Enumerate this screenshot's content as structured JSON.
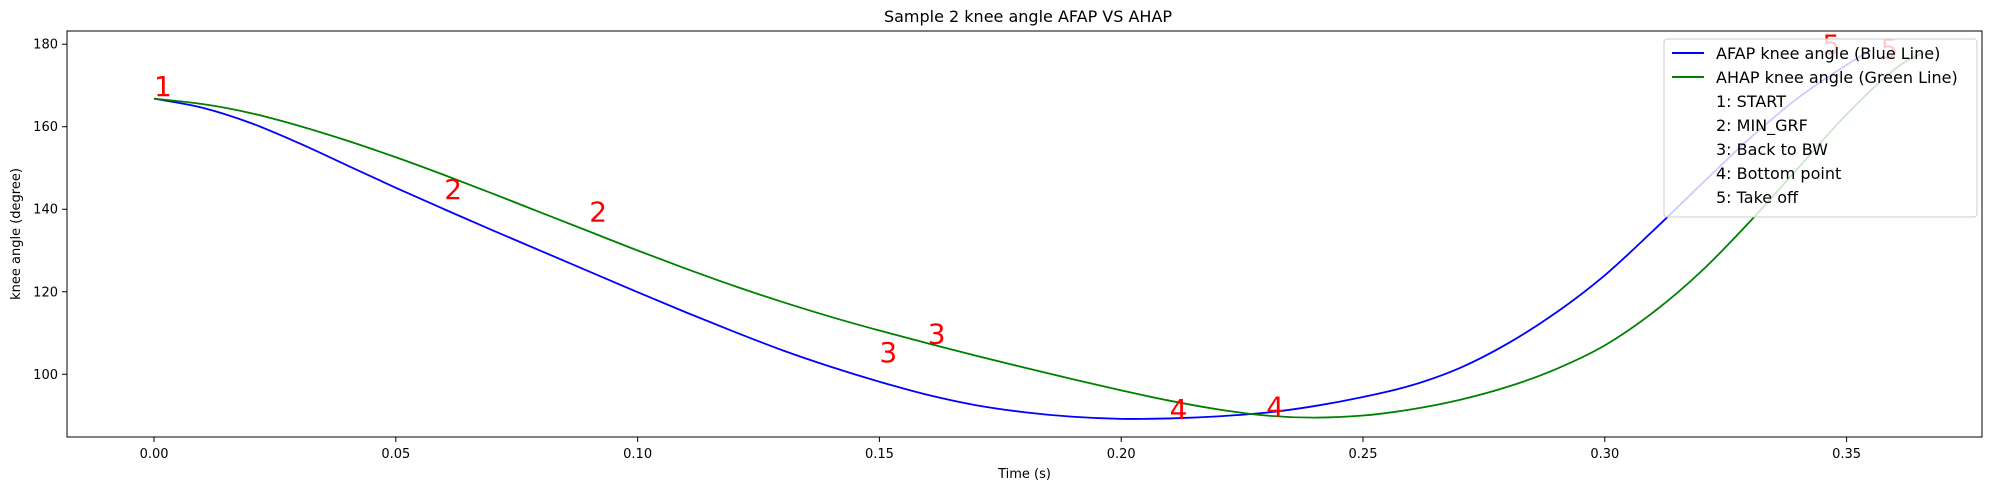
{
  "chart_data": {
    "type": "line",
    "title": "Sample 2 knee angle AFAP VS AHAP",
    "xlabel": "Time (s)",
    "ylabel": "knee angle (degree)",
    "xlim": [
      -0.018,
      0.378
    ],
    "ylim": [
      84.8,
      183.2
    ],
    "xticks": [
      0.0,
      0.05,
      0.1,
      0.15,
      0.2,
      0.25,
      0.3,
      0.35
    ],
    "xtick_labels": [
      "0.00",
      "0.05",
      "0.10",
      "0.15",
      "0.20",
      "0.25",
      "0.30",
      "0.35"
    ],
    "yticks": [
      100,
      120,
      140,
      160,
      180
    ],
    "ytick_labels": [
      "100",
      "120",
      "140",
      "160",
      "180"
    ],
    "grid": false,
    "legend_position": "top-right",
    "series": [
      {
        "name": "AFAP knee angle (Blue Line)",
        "color": "#0000ff",
        "x": [
          0.0,
          0.01,
          0.02,
          0.03,
          0.04,
          0.05,
          0.06,
          0.07,
          0.08,
          0.09,
          0.1,
          0.11,
          0.12,
          0.13,
          0.14,
          0.15,
          0.16,
          0.17,
          0.18,
          0.19,
          0.2,
          0.21,
          0.22,
          0.23,
          0.24,
          0.25,
          0.26,
          0.27,
          0.28,
          0.29,
          0.3,
          0.31,
          0.32,
          0.33,
          0.34,
          0.35,
          0.355
        ],
        "y": [
          166.8,
          164.6,
          160.9,
          156.0,
          150.6,
          145.2,
          140.0,
          134.9,
          129.9,
          124.9,
          119.9,
          115.0,
          110.3,
          105.8,
          101.8,
          98.2,
          95.0,
          92.5,
          90.8,
          89.7,
          89.2,
          89.3,
          89.8,
          90.7,
          92.3,
          94.5,
          97.3,
          101.5,
          107.5,
          115.0,
          124.0,
          134.8,
          146.1,
          157.2,
          167.0,
          175.0,
          178.5
        ]
      },
      {
        "name": "AHAP knee angle (Green Line)",
        "color": "#008000",
        "x": [
          0.0,
          0.01,
          0.02,
          0.03,
          0.04,
          0.05,
          0.06,
          0.07,
          0.08,
          0.09,
          0.1,
          0.11,
          0.12,
          0.13,
          0.14,
          0.15,
          0.16,
          0.17,
          0.18,
          0.19,
          0.2,
          0.21,
          0.22,
          0.23,
          0.24,
          0.25,
          0.26,
          0.27,
          0.28,
          0.29,
          0.3,
          0.31,
          0.32,
          0.33,
          0.34,
          0.35,
          0.36,
          0.366
        ],
        "y": [
          166.8,
          165.5,
          163.3,
          160.2,
          156.6,
          152.6,
          148.3,
          143.8,
          139.2,
          134.6,
          130.0,
          125.6,
          121.4,
          117.5,
          113.9,
          110.6,
          107.5,
          104.5,
          101.6,
          98.8,
          96.1,
          93.6,
          91.5,
          90.0,
          89.5,
          90.0,
          91.5,
          93.8,
          97.0,
          101.3,
          107.0,
          115.0,
          125.0,
          137.0,
          150.0,
          163.0,
          174.0,
          178.0
        ]
      }
    ],
    "annotations": [
      {
        "text": "1",
        "x": 0.0,
        "y": 167.5,
        "color": "#ff0000"
      },
      {
        "text": "2",
        "x": 0.06,
        "y": 142.5,
        "color": "#ff0000"
      },
      {
        "text": "2",
        "x": 0.09,
        "y": 137.0,
        "color": "#ff0000"
      },
      {
        "text": "3",
        "x": 0.15,
        "y": 103.0,
        "color": "#ff0000"
      },
      {
        "text": "3",
        "x": 0.16,
        "y": 107.5,
        "color": "#ff0000"
      },
      {
        "text": "4",
        "x": 0.21,
        "y": 89.2,
        "color": "#ff0000"
      },
      {
        "text": "4",
        "x": 0.23,
        "y": 89.8,
        "color": "#ff0000"
      },
      {
        "text": "5",
        "x": 0.345,
        "y": 177.5,
        "color": "#ff0000"
      },
      {
        "text": "5",
        "x": 0.357,
        "y": 176.5,
        "color": "#ff0000"
      }
    ],
    "legend_notes": [
      "1: START",
      "2: MIN_GRF",
      "3: Back to BW",
      "4: Bottom point",
      "5: Take off"
    ]
  }
}
